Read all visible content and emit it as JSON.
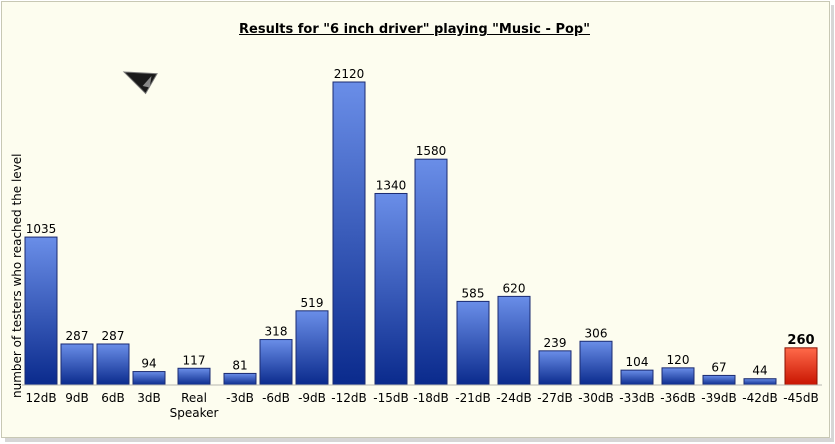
{
  "chart_data": {
    "type": "bar",
    "title": "Results for \"6 inch driver\" playing \"Music - Pop\"",
    "ylabel": "number of testers who reached the level",
    "xlabel": "",
    "ylim": [
      0,
      2120
    ],
    "grid": false,
    "legend": "none",
    "categories": [
      "12dB",
      "9dB",
      "6dB",
      "3dB",
      "Real Speaker",
      "-3dB",
      "-6dB",
      "-9dB",
      "-12dB",
      "-15dB",
      "-18dB",
      "-21dB",
      "-24dB",
      "-27dB",
      "-30dB",
      "-33dB",
      "-36dB",
      "-39dB",
      "-42dB",
      "-45dB"
    ],
    "values": [
      1035,
      287,
      287,
      94,
      117,
      81,
      318,
      519,
      2120,
      1340,
      1580,
      585,
      620,
      239,
      306,
      104,
      120,
      67,
      44,
      260
    ],
    "highlight_index": 19,
    "colors": {
      "bar_top": "#6a8ee8",
      "bar_bottom": "#0a2a8c",
      "highlight_top": "#ff6a4a",
      "highlight_bottom": "#c81400",
      "background": "#fdfdef"
    }
  },
  "icons": {
    "cursor": "arrow-cursor-icon"
  }
}
